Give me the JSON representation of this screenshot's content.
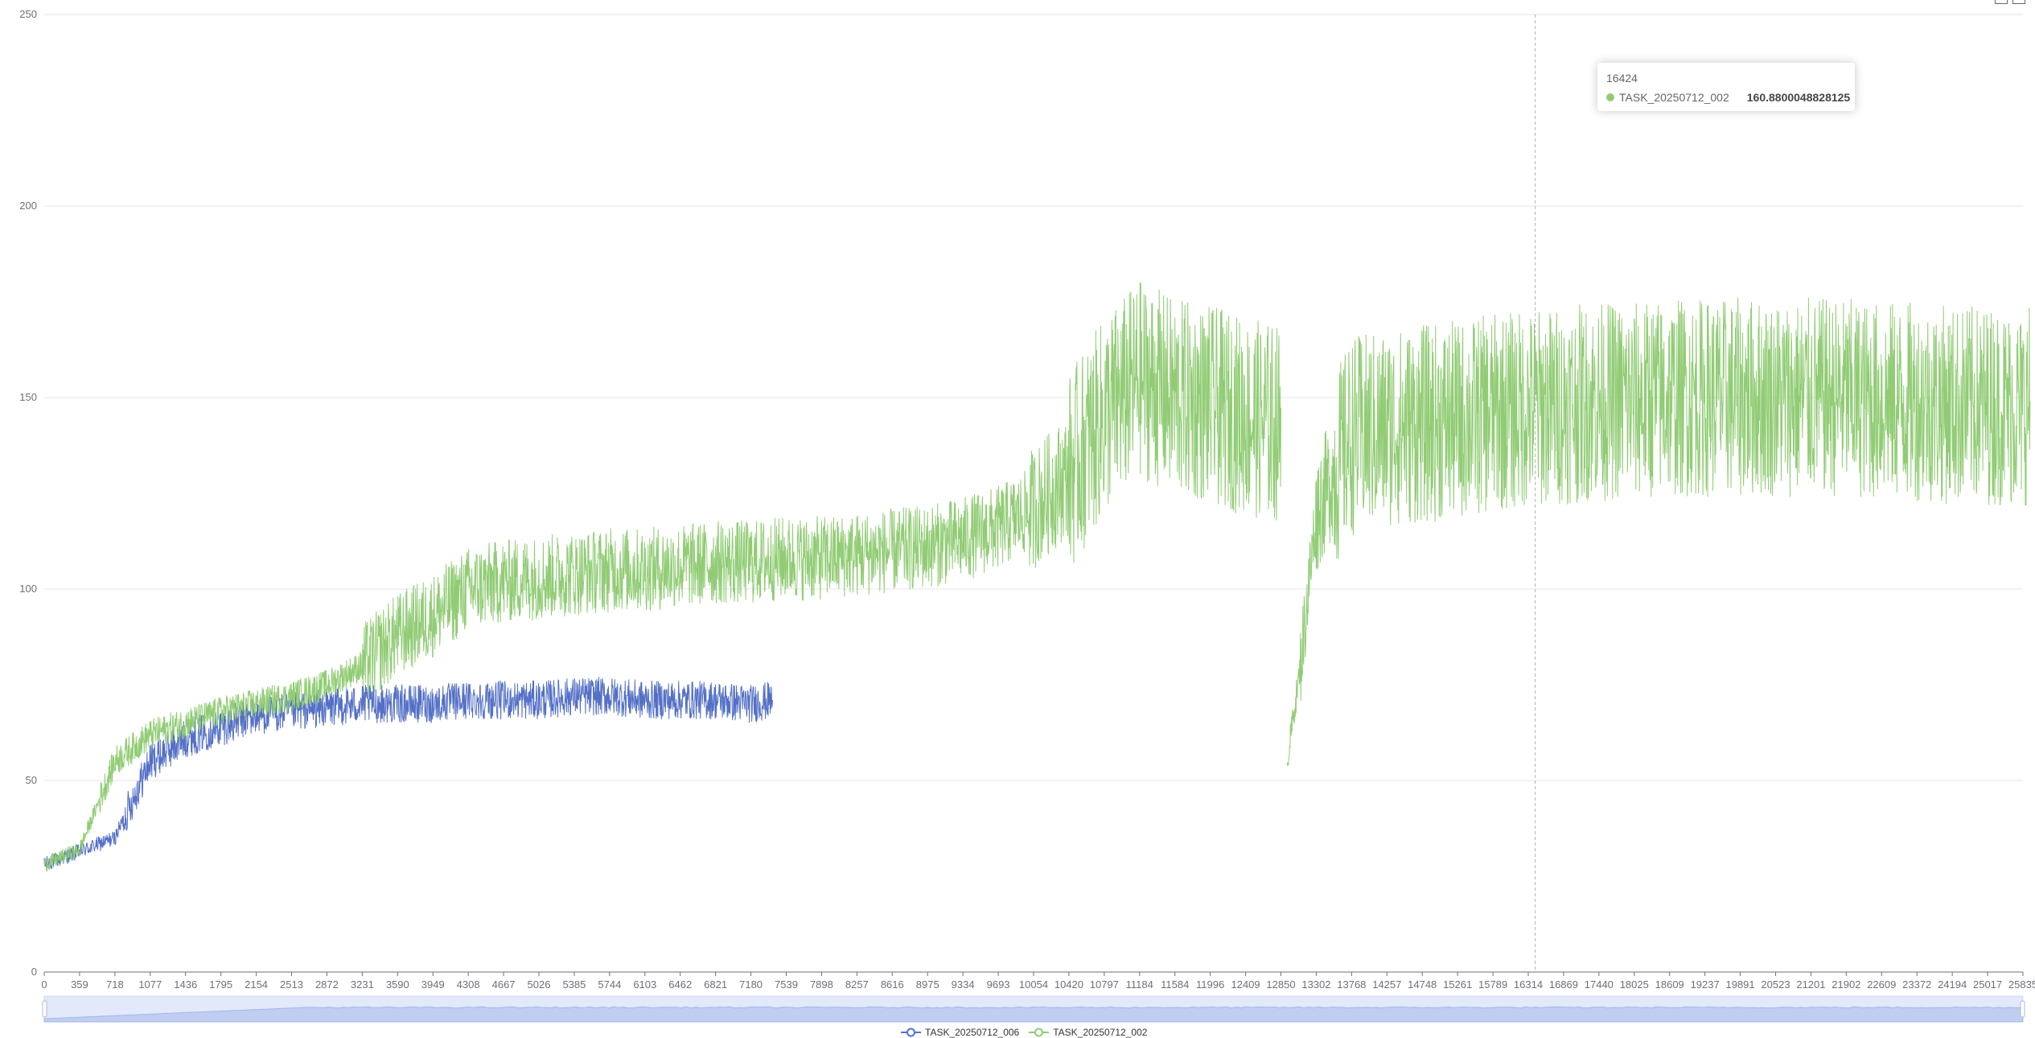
{
  "chart_data": {
    "type": "line",
    "ylim": [
      0,
      250
    ],
    "y_ticks": [
      0,
      50,
      100,
      150,
      200,
      250
    ],
    "x_tick_labels": [
      "0",
      "359",
      "718",
      "1077",
      "1436",
      "1795",
      "2154",
      "2513",
      "2872",
      "3231",
      "3590",
      "3949",
      "4308",
      "4667",
      "5026",
      "5385",
      "5744",
      "6103",
      "6462",
      "6821",
      "7180",
      "7539",
      "7898",
      "8257",
      "8616",
      "8975",
      "9334",
      "9693",
      "10054",
      "10420",
      "10797",
      "11184",
      "11584",
      "11996",
      "12409",
      "12850",
      "13302",
      "13768",
      "14257",
      "14748",
      "15261",
      "15789",
      "16314",
      "16869",
      "17440",
      "18025",
      "18609",
      "19237",
      "19891",
      "20523",
      "21201",
      "21902",
      "22609",
      "23372",
      "24194",
      "25017",
      "25835"
    ],
    "grid": "horizontal",
    "legend_position": "bottom-center",
    "series": [
      {
        "name": "TASK_20250712_006",
        "color": "#5470c6",
        "note_range": "ends near x=7400",
        "x": [
          0,
          718,
          1077,
          1436,
          1795,
          2154,
          2513,
          2872,
          3231,
          3590,
          3949,
          4308,
          4667,
          5026,
          5385,
          5744,
          6103,
          6462,
          6821,
          7180,
          7400
        ],
        "values": [
          28,
          35,
          55,
          61,
          64,
          67,
          68,
          69,
          70,
          70,
          70,
          71,
          71,
          71,
          72,
          72,
          71,
          71,
          71,
          70,
          71
        ]
      },
      {
        "name": "TASK_20250712_002",
        "color": "#91cc75",
        "x": [
          0,
          359,
          718,
          1077,
          1436,
          1795,
          2154,
          2513,
          2872,
          3231,
          3590,
          3949,
          4308,
          4667,
          5026,
          5385,
          5744,
          6103,
          6462,
          6821,
          7180,
          7539,
          7898,
          8257,
          8616,
          8975,
          9334,
          9693,
          10054,
          10420,
          10797,
          11184,
          11584,
          11996,
          12409,
          12850,
          12930,
          13100,
          13302,
          13768,
          14257,
          14748,
          15261,
          15789,
          16314,
          16869,
          17440,
          18025,
          18609,
          19237,
          19891,
          20523,
          21201,
          21902,
          22609,
          23372,
          24194,
          25017,
          25835,
          26000
        ],
        "values": [
          28,
          32,
          55,
          62,
          65,
          68,
          70,
          72,
          75,
          80,
          88,
          93,
          100,
          102,
          103,
          104,
          105,
          105,
          106,
          107,
          107,
          108,
          108,
          109,
          110,
          111,
          113,
          116,
          121,
          130,
          145,
          155,
          150,
          148,
          145,
          143,
          55,
          80,
          120,
          140,
          142,
          143,
          144,
          146,
          147,
          148,
          149,
          149,
          150,
          150,
          150,
          150,
          150,
          150,
          149,
          149,
          148,
          148,
          147,
          149
        ]
      }
    ],
    "tooltip": {
      "x_label": "16424",
      "series": "TASK_20250712_002",
      "value": "160.8800048828125"
    }
  }
}
